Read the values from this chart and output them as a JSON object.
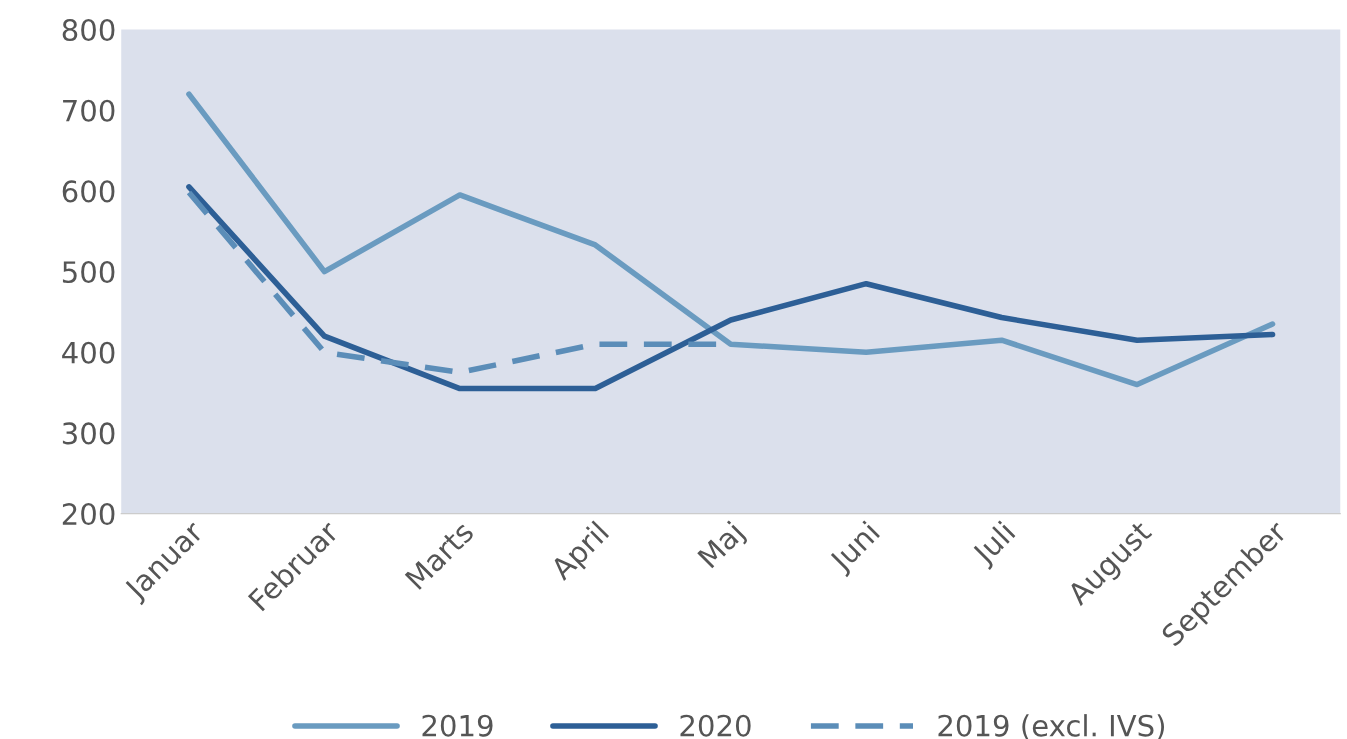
{
  "chart_data": {
    "type": "line",
    "categories": [
      "Januar",
      "Februar",
      "Marts",
      "April",
      "Maj",
      "Juni",
      "Juli",
      "August",
      "September"
    ],
    "series": [
      {
        "name": "2019",
        "color": "#6a9bc0",
        "values": [
          720,
          500,
          595,
          533,
          410,
          400,
          415,
          360,
          435
        ]
      },
      {
        "name": "2020",
        "color": "#2d5f96",
        "values": [
          605,
          420,
          355,
          355,
          440,
          485,
          443,
          415,
          422
        ]
      },
      {
        "name": "2019 (excl. IVS)",
        "color": "#5b8db8",
        "line_style": "dashed",
        "values": [
          598,
          400,
          375,
          410,
          410,
          null,
          null,
          null,
          null
        ]
      }
    ],
    "ylim": [
      200,
      800
    ],
    "yticks": [
      200,
      300,
      400,
      500,
      600,
      700,
      800
    ],
    "grid": false,
    "legend": "bottom",
    "marker": "none"
  }
}
